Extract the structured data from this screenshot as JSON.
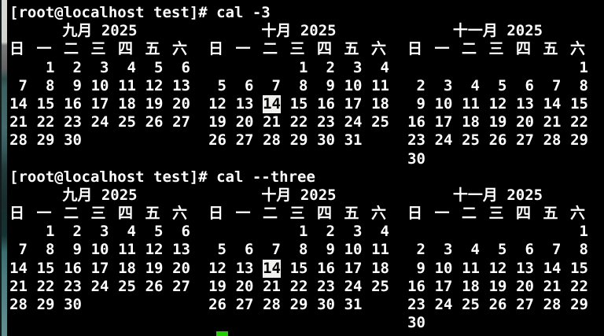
{
  "terminal": {
    "prompt1": "[root@localhost test]# cal -3",
    "prompt2": "[root@localhost test]# cal --three",
    "colors": {
      "background": "#000000",
      "text": "#ffffff",
      "highlight_bg": "#f0f0ec",
      "highlight_text": "#000000",
      "cursor_green": "#22cc00"
    }
  },
  "calendar": {
    "weekdays": [
      "日",
      "一",
      "二",
      "三",
      "四",
      "五",
      "六"
    ],
    "highlight": {
      "month": 1,
      "row": 2,
      "col": 2,
      "value": "14"
    },
    "months": [
      {
        "title": "九月 2025",
        "rows": [
          [
            "",
            "1",
            "2",
            "3",
            "4",
            "5",
            "6"
          ],
          [
            "7",
            "8",
            "9",
            "10",
            "11",
            "12",
            "13"
          ],
          [
            "14",
            "15",
            "16",
            "17",
            "18",
            "19",
            "20"
          ],
          [
            "21",
            "22",
            "23",
            "24",
            "25",
            "26",
            "27"
          ],
          [
            "28",
            "29",
            "30",
            "",
            "",
            "",
            ""
          ],
          [
            "",
            "",
            "",
            "",
            "",
            "",
            ""
          ]
        ]
      },
      {
        "title": "十月 2025",
        "rows": [
          [
            "",
            "",
            "",
            "1",
            "2",
            "3",
            "4"
          ],
          [
            "5",
            "6",
            "7",
            "8",
            "9",
            "10",
            "11"
          ],
          [
            "12",
            "13",
            "14",
            "15",
            "16",
            "17",
            "18"
          ],
          [
            "19",
            "20",
            "21",
            "22",
            "23",
            "24",
            "25"
          ],
          [
            "26",
            "27",
            "28",
            "29",
            "30",
            "31",
            ""
          ],
          [
            "",
            "",
            "",
            "",
            "",
            "",
            ""
          ]
        ]
      },
      {
        "title": "十一月 2025",
        "rows": [
          [
            "",
            "",
            "",
            "",
            "",
            "",
            "1"
          ],
          [
            "2",
            "3",
            "4",
            "5",
            "6",
            "7",
            "8"
          ],
          [
            "9",
            "10",
            "11",
            "12",
            "13",
            "14",
            "15"
          ],
          [
            "16",
            "17",
            "18",
            "19",
            "20",
            "21",
            "22"
          ],
          [
            "23",
            "24",
            "25",
            "26",
            "27",
            "28",
            "29"
          ],
          [
            "30",
            "",
            "",
            "",
            "",
            "",
            ""
          ]
        ]
      }
    ]
  }
}
